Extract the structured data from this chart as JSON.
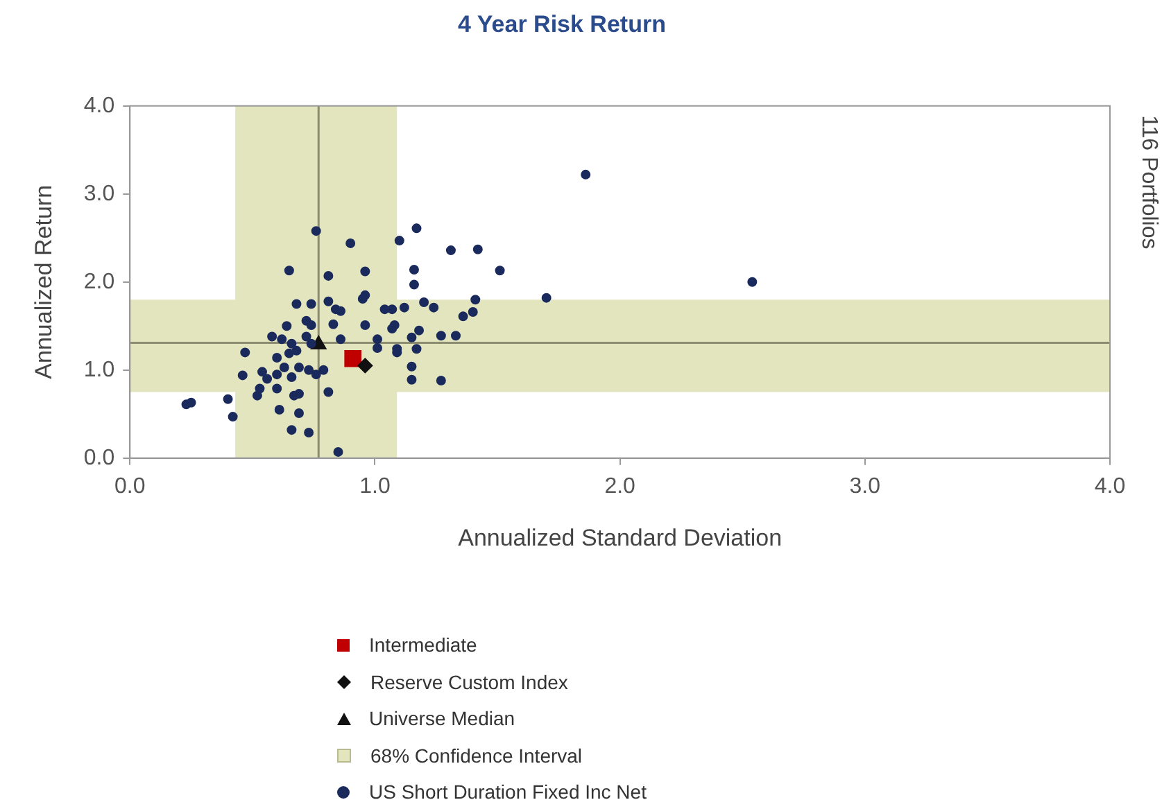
{
  "chart_data": {
    "type": "scatter",
    "title": "4 Year Risk Return",
    "xlabel": "Annualized Standard Deviation",
    "ylabel": "Annualized Return",
    "xlim": [
      0,
      4
    ],
    "ylim": [
      0,
      4
    ],
    "xticks": [
      {
        "value": 0,
        "label": "0.0"
      },
      {
        "value": 1,
        "label": "1.0"
      },
      {
        "value": 2,
        "label": "2.0"
      },
      {
        "value": 3,
        "label": "3.0"
      },
      {
        "value": 4,
        "label": "4.0"
      }
    ],
    "yticks": [
      {
        "value": 0,
        "label": "0.0"
      },
      {
        "value": 1,
        "label": "1.0"
      },
      {
        "value": 2,
        "label": "2.0"
      },
      {
        "value": 3,
        "label": "3.0"
      },
      {
        "value": 4,
        "label": "4.0"
      }
    ],
    "grid": false,
    "legend": "bottom",
    "bands": [
      {
        "axis": "x",
        "from": 0.43,
        "to": 1.09,
        "label": "68% Confidence Interval",
        "color": "#e3e5bf"
      },
      {
        "axis": "y",
        "from": 0.75,
        "to": 1.8,
        "color": "#e3e5bf"
      }
    ],
    "ref_lines": [
      {
        "axis": "x",
        "value": 0.77,
        "color": "#8c8c70"
      },
      {
        "axis": "y",
        "value": 1.31,
        "color": "#8c8c70"
      }
    ],
    "annotations": [
      "116 Portfolios"
    ],
    "series": [
      {
        "name": "US Short Duration Fixed Inc Net",
        "color": "#1b2a5c",
        "marker": "circle",
        "x": [
          0.76,
          0.9,
          1.1,
          1.17,
          0.65,
          0.81,
          0.96,
          1.16,
          1.16,
          0.96,
          0.95,
          0.68,
          0.74,
          0.81,
          0.84,
          0.86,
          1.04,
          1.07,
          1.12,
          1.2,
          1.24,
          0.72,
          0.74,
          0.83,
          0.96,
          1.08,
          1.07,
          1.15,
          1.18,
          1.27,
          0.64,
          0.58,
          0.62,
          0.66,
          0.68,
          0.65,
          0.6,
          0.72,
          0.74,
          0.86,
          1.01,
          1.01,
          1.09,
          1.09,
          1.17,
          0.47,
          0.46,
          0.54,
          0.56,
          0.6,
          0.63,
          0.66,
          0.69,
          0.73,
          0.76,
          0.79,
          0.53,
          0.6,
          0.67,
          0.69,
          0.81,
          1.15,
          1.15,
          1.27,
          0.23,
          0.25,
          0.4,
          0.42,
          0.52,
          0.61,
          0.69,
          0.66,
          0.73,
          0.85,
          1.31,
          1.42,
          1.51,
          1.41,
          1.4,
          1.36,
          1.33,
          1.7,
          1.86,
          2.54
        ],
        "values": [
          2.58,
          2.44,
          2.47,
          2.61,
          2.13,
          2.07,
          2.12,
          2.14,
          1.97,
          1.85,
          1.81,
          1.75,
          1.75,
          1.78,
          1.69,
          1.67,
          1.69,
          1.69,
          1.71,
          1.77,
          1.71,
          1.56,
          1.51,
          1.52,
          1.51,
          1.51,
          1.47,
          1.37,
          1.45,
          1.39,
          1.5,
          1.38,
          1.35,
          1.3,
          1.22,
          1.19,
          1.14,
          1.38,
          1.3,
          1.35,
          1.35,
          1.25,
          1.24,
          1.2,
          1.24,
          1.2,
          0.94,
          0.98,
          0.9,
          0.95,
          1.03,
          0.92,
          1.03,
          1.0,
          0.95,
          1.0,
          0.79,
          0.79,
          0.71,
          0.73,
          0.75,
          1.04,
          0.89,
          0.88,
          0.61,
          0.63,
          0.67,
          0.47,
          0.71,
          0.55,
          0.51,
          0.32,
          0.29,
          0.07,
          2.36,
          2.37,
          2.13,
          1.8,
          1.66,
          1.61,
          1.39,
          1.82,
          3.22,
          2.0
        ]
      },
      {
        "name": "Universe Median",
        "color": "#111111",
        "marker": "triangle",
        "x": [
          0.77
        ],
        "values": [
          1.29
        ]
      },
      {
        "name": "Reserve Custom Index",
        "color": "#111111",
        "marker": "diamond",
        "x": [
          0.96
        ],
        "values": [
          1.05
        ]
      },
      {
        "name": "Intermediate",
        "color": "#c00000",
        "marker": "square",
        "x": [
          0.91
        ],
        "values": [
          1.13
        ]
      }
    ]
  }
}
